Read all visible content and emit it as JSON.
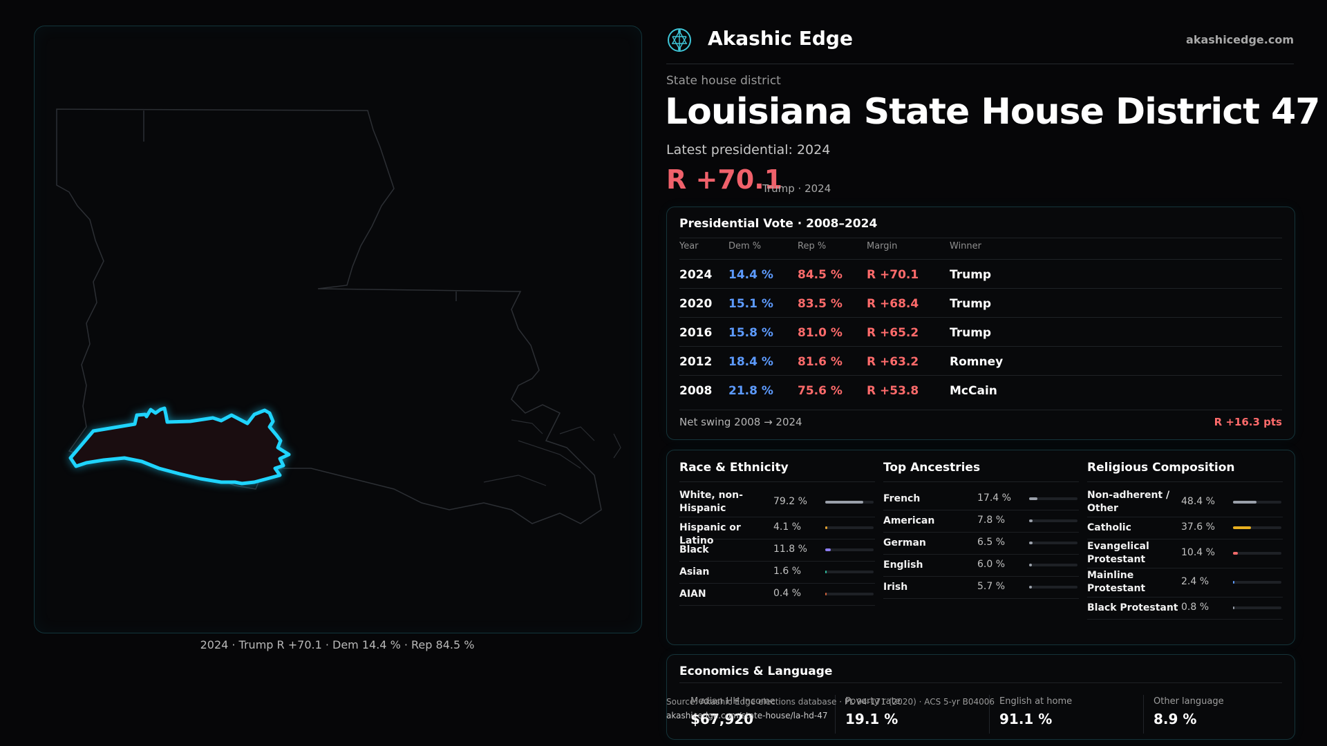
{
  "brand": {
    "name": "Akashic Edge",
    "url": "akashicedge.com",
    "logo_icon": "network-globe-icon"
  },
  "kicker": "State house district",
  "title": "Louisiana State House District 47",
  "latest_label": "Latest presidential: 2024",
  "headline_margin": "R +70.1",
  "headline_sub": "Trump · 2024",
  "map_caption": "2024 · Trump R +70.1 · Dem 14.4 % · Rep 84.5 %",
  "presidential": {
    "title": "Presidential Vote · 2008–2024",
    "headers": {
      "year": "Year",
      "dem": "Dem %",
      "rep": "Rep %",
      "margin": "Margin",
      "winner": "Winner"
    },
    "rows": [
      {
        "year": "2024",
        "dem": "14.4 %",
        "rep": "84.5 %",
        "margin": "R +70.1",
        "winner": "Trump"
      },
      {
        "year": "2020",
        "dem": "15.1 %",
        "rep": "83.5 %",
        "margin": "R +68.4",
        "winner": "Trump"
      },
      {
        "year": "2016",
        "dem": "15.8 %",
        "rep": "81.0 %",
        "margin": "R +65.2",
        "winner": "Trump"
      },
      {
        "year": "2012",
        "dem": "18.4 %",
        "rep": "81.6 %",
        "margin": "R +63.2",
        "winner": "Romney"
      },
      {
        "year": "2008",
        "dem": "21.8 %",
        "rep": "75.6 %",
        "margin": "R +53.8",
        "winner": "McCain"
      }
    ],
    "swing_label": "Net swing 2008 → 2024",
    "swing_value": "R +16.3 pts"
  },
  "race": {
    "title": "Race & Ethnicity",
    "items": [
      {
        "label": "White, non-Hispanic",
        "value": "79.2 %",
        "pct": 79.2,
        "color": "#9aa0aa"
      },
      {
        "label": "Hispanic or Latino",
        "value": "4.1 %",
        "pct": 4.1,
        "color": "#e0a030"
      },
      {
        "label": "Black",
        "value": "11.8 %",
        "pct": 11.8,
        "color": "#8c7cf0"
      },
      {
        "label": "Asian",
        "value": "1.6 %",
        "pct": 1.6,
        "color": "#2fbf9f"
      },
      {
        "label": "AIAN",
        "value": "0.4 %",
        "pct": 0.4,
        "color": "#d0603a"
      }
    ]
  },
  "ancestry": {
    "title": "Top Ancestries",
    "items": [
      {
        "label": "French",
        "value": "17.4 %",
        "pct": 17.4,
        "color": "#9aa0aa"
      },
      {
        "label": "American",
        "value": "7.8 %",
        "pct": 7.8,
        "color": "#9aa0aa"
      },
      {
        "label": "German",
        "value": "6.5 %",
        "pct": 6.5,
        "color": "#9aa0aa"
      },
      {
        "label": "English",
        "value": "6.0 %",
        "pct": 6.0,
        "color": "#9aa0aa"
      },
      {
        "label": "Irish",
        "value": "5.7 %",
        "pct": 5.7,
        "color": "#9aa0aa"
      }
    ]
  },
  "religion": {
    "title": "Religious Composition",
    "items": [
      {
        "label": "Non-adherent / Other",
        "value": "48.4 %",
        "pct": 48.4,
        "color": "#9aa0aa"
      },
      {
        "label": "Catholic",
        "value": "37.6 %",
        "pct": 37.6,
        "color": "#e8b020"
      },
      {
        "label": "Evangelical Protestant",
        "value": "10.4 %",
        "pct": 10.4,
        "color": "#f06a6a"
      },
      {
        "label": "Mainline Protestant",
        "value": "2.4 %",
        "pct": 2.4,
        "color": "#5d9bff"
      },
      {
        "label": "Black Protestant",
        "value": "0.8 %",
        "pct": 0.8,
        "color": "#9aa0aa"
      }
    ]
  },
  "economics": {
    "title": "Economics & Language",
    "items": [
      {
        "label": "Median HH income",
        "value": "$67,920"
      },
      {
        "label": "Poverty rate",
        "value": "19.1 %"
      },
      {
        "label": "English at home",
        "value": "91.1 %"
      },
      {
        "label": "Other language",
        "value": "8.9 %"
      }
    ]
  },
  "source": {
    "line": "Source: Akashic Edge elections database · PL 94-171 (2020) · ACS 5-yr B04006",
    "url": "akashicedge.com/state-house/la-hd-47"
  }
}
